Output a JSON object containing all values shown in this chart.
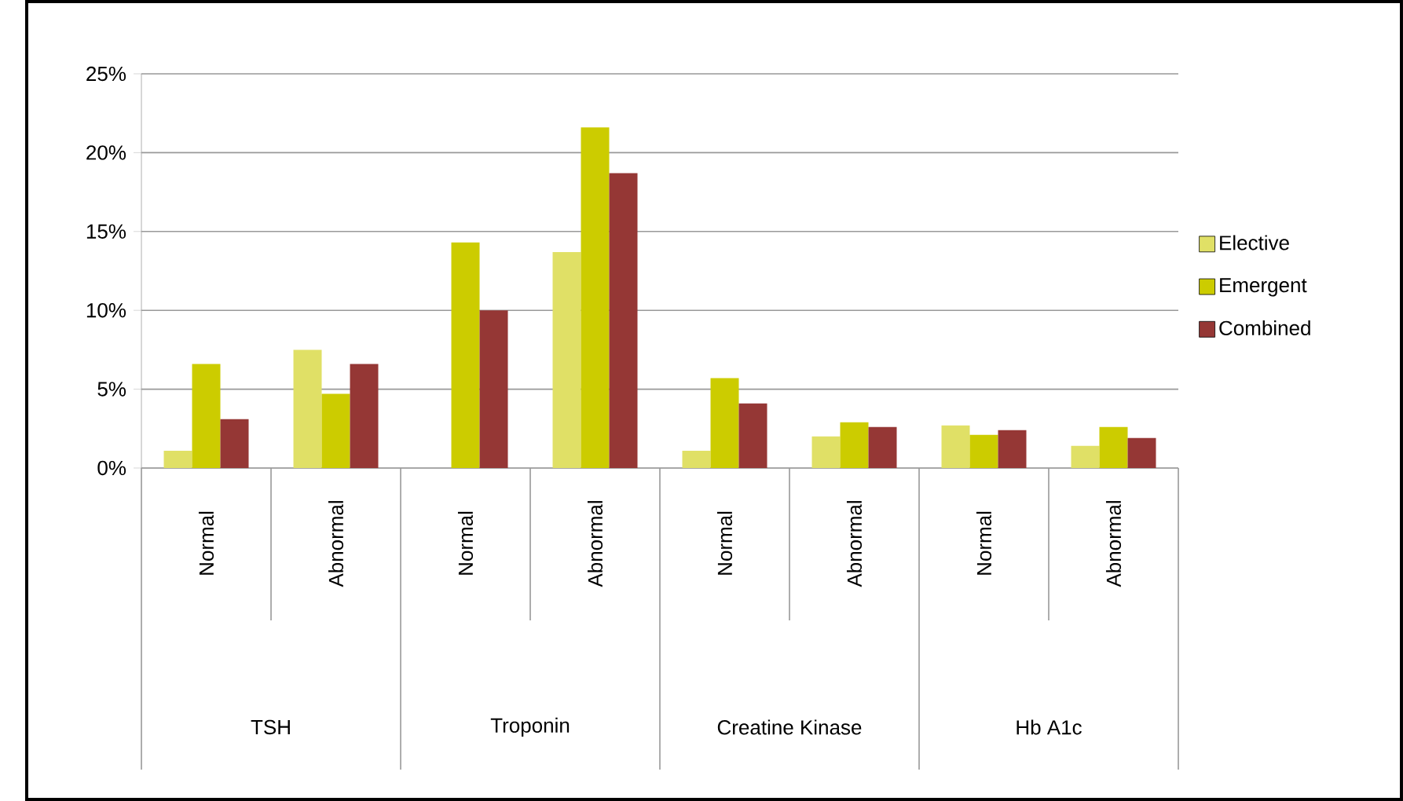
{
  "chart_data": {
    "type": "bar",
    "categories": [
      "Normal",
      "Abnormal",
      "Normal",
      "Abnormal",
      "Normal",
      "Abnormal",
      "Normal",
      "Abnormal"
    ],
    "annotations": [
      "TSH",
      "Troponin",
      "Creatine Kinase",
      "Hb A1c"
    ],
    "series": [
      {
        "name": "Elective",
        "color": "#e0e066",
        "values": [
          1.1,
          7.5,
          0,
          13.7,
          1.1,
          2.0,
          2.7,
          1.4
        ]
      },
      {
        "name": "Emergent",
        "color": "#cccc00",
        "values": [
          6.6,
          4.7,
          14.3,
          21.6,
          5.7,
          2.9,
          2.1,
          2.6
        ]
      },
      {
        "name": "Combined",
        "color": "#953735",
        "values": [
          3.1,
          6.6,
          10.0,
          18.7,
          4.1,
          2.6,
          2.4,
          1.9
        ]
      }
    ],
    "ylim": [
      0,
      25
    ],
    "yticks": [
      {
        "value": 0,
        "label": "0%"
      },
      {
        "value": 5,
        "label": "5%"
      },
      {
        "value": 10,
        "label": "10%"
      },
      {
        "value": 15,
        "label": "15%"
      },
      {
        "value": 20,
        "label": "20%"
      },
      {
        "value": 25,
        "label": "25%"
      }
    ],
    "grid": "y",
    "legend": "right"
  }
}
